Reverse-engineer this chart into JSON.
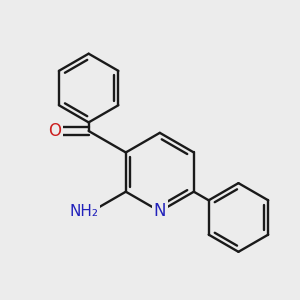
{
  "bg_color": "#ececec",
  "bond_color": "#1a1a1a",
  "N_color": "#2222bb",
  "O_color": "#cc2020",
  "NH2_color": "#2222bb",
  "line_width": 1.7,
  "font_size_N": 12,
  "font_size_O": 12,
  "font_size_NH2": 11,
  "fig_size": [
    3.0,
    3.0
  ],
  "dpi": 100,
  "xlim": [
    -0.3,
    1.7
  ],
  "ylim": [
    -1.1,
    1.3
  ]
}
